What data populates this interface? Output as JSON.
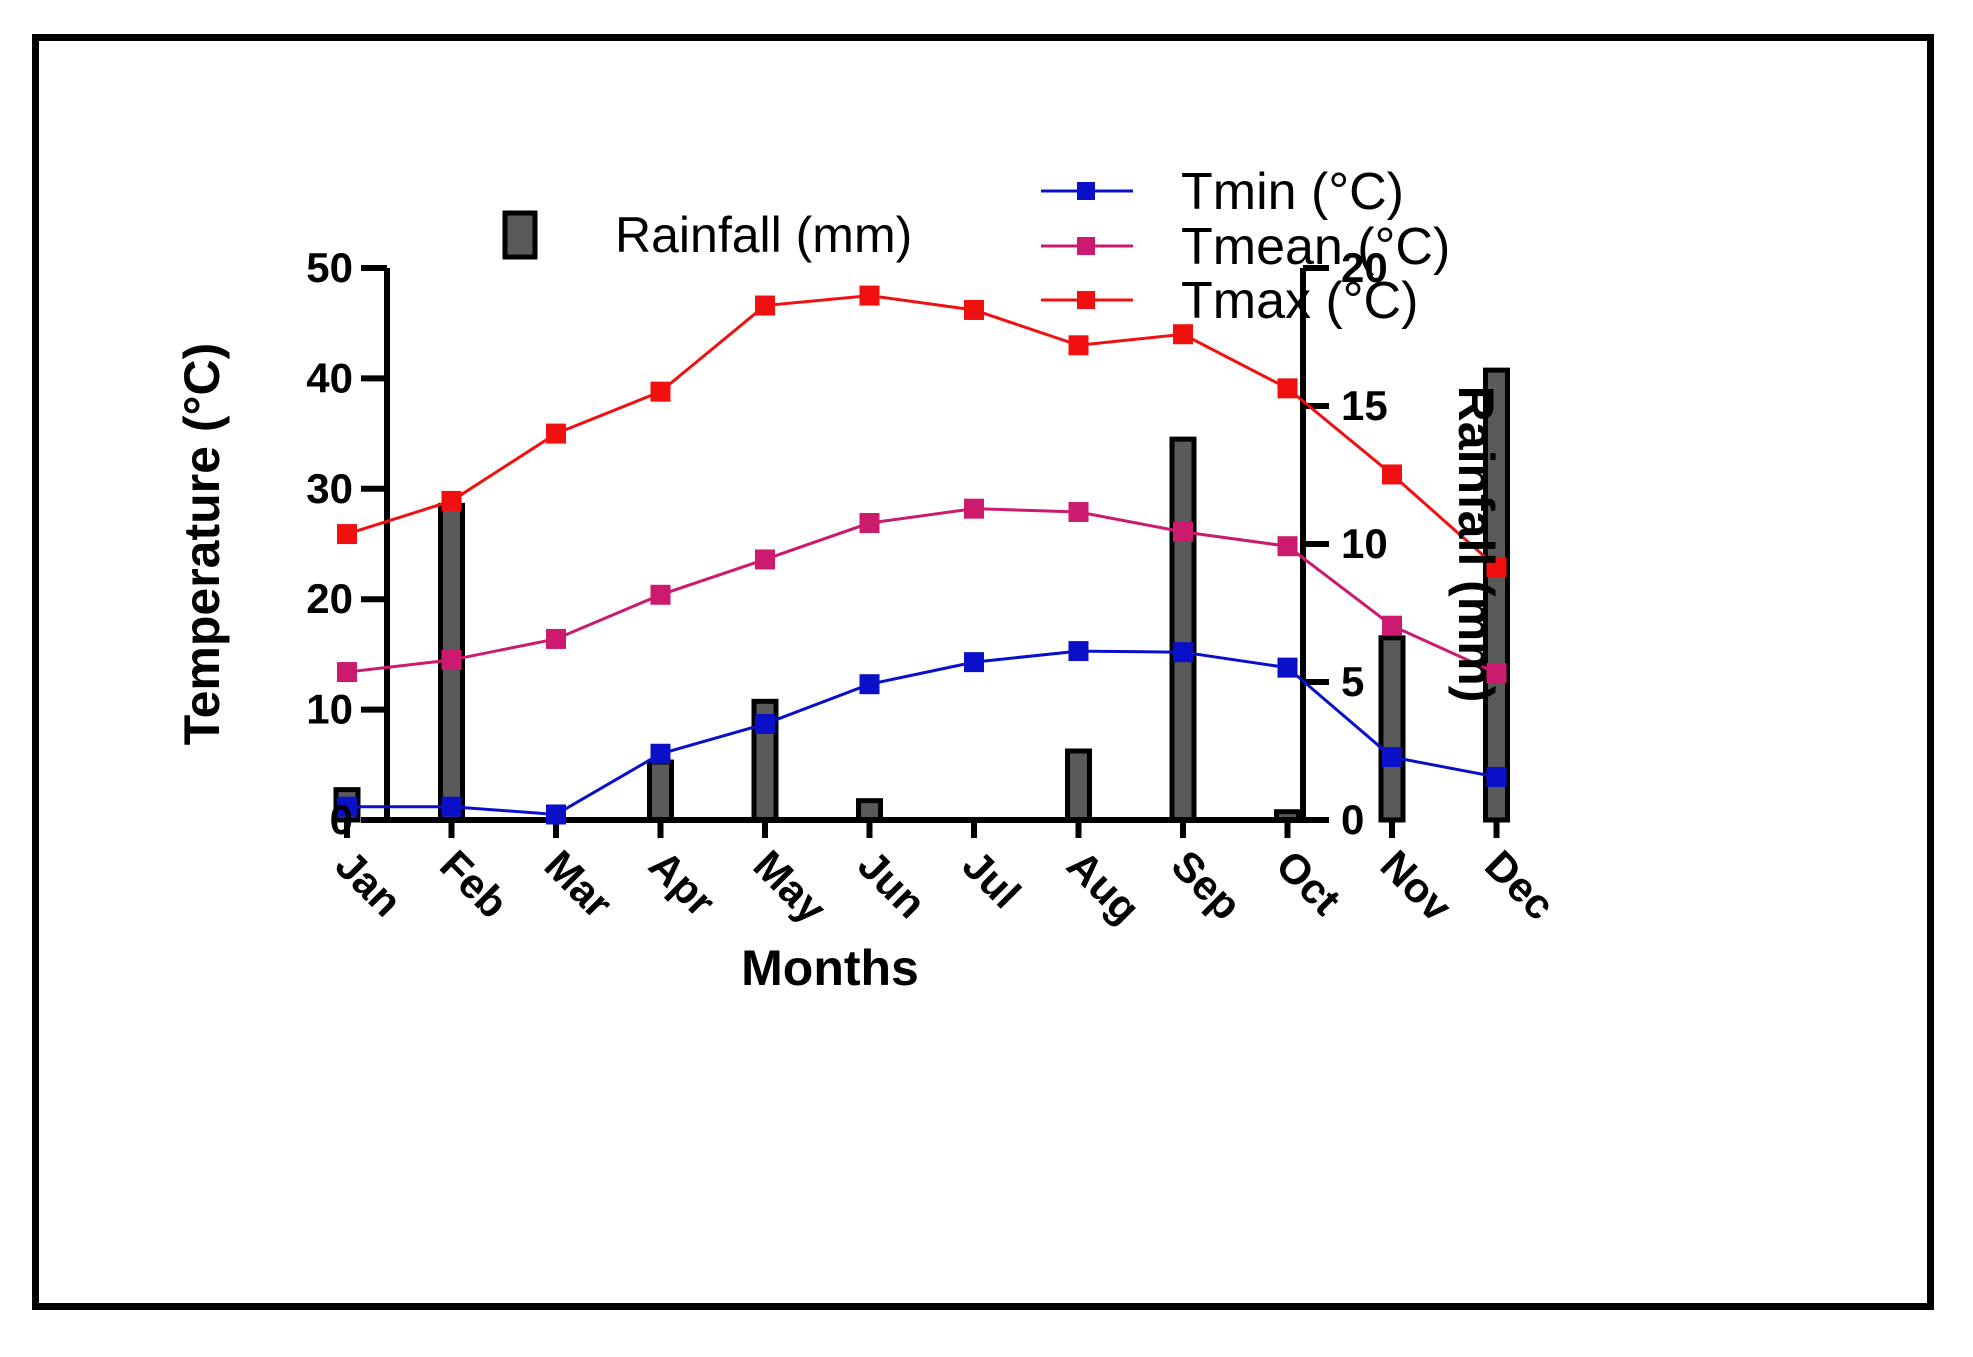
{
  "chart_data": {
    "type": "bar+line",
    "categories": [
      "Jan",
      "Feb",
      "Mar",
      "Apr",
      "May",
      "Jun",
      "Jul",
      "Aug",
      "Sep",
      "Oct",
      "Nov",
      "Dec"
    ],
    "bars": {
      "name": "Rainfall (mm)",
      "axis": "right",
      "color": "#5a5a5a",
      "values": [
        1.1,
        11.4,
        0,
        2.1,
        4.3,
        0.7,
        0,
        2.5,
        13.8,
        0.3,
        6.6,
        16.3
      ]
    },
    "series": [
      {
        "name": "Tmin (°C)",
        "color": "#0a10c8",
        "values": [
          1.2,
          1.2,
          0.5,
          6.0,
          8.7,
          12.3,
          14.3,
          15.3,
          15.2,
          13.8,
          5.7,
          3.9
        ]
      },
      {
        "name": "Tmean (°C)",
        "color": "#cc1a6e",
        "values": [
          13.4,
          14.5,
          16.4,
          20.4,
          23.6,
          26.9,
          28.2,
          27.9,
          26.1,
          24.8,
          17.6,
          13.3
        ]
      },
      {
        "name": "Tmax (°C)",
        "color": "#f01010",
        "values": [
          25.9,
          28.9,
          35.0,
          38.8,
          46.6,
          47.5,
          46.2,
          43.0,
          44.0,
          39.1,
          31.3,
          22.9
        ]
      }
    ],
    "xlabel": "Months",
    "ylabel": "Temperature (°C)",
    "y2label": "Rainfall (mm)",
    "ylim": [
      0,
      50
    ],
    "y2lim": [
      0,
      20
    ],
    "yticks": [
      0,
      10,
      20,
      30,
      40,
      50
    ],
    "y2ticks": [
      0,
      5,
      10,
      15,
      20
    ],
    "legend_position": "top"
  }
}
